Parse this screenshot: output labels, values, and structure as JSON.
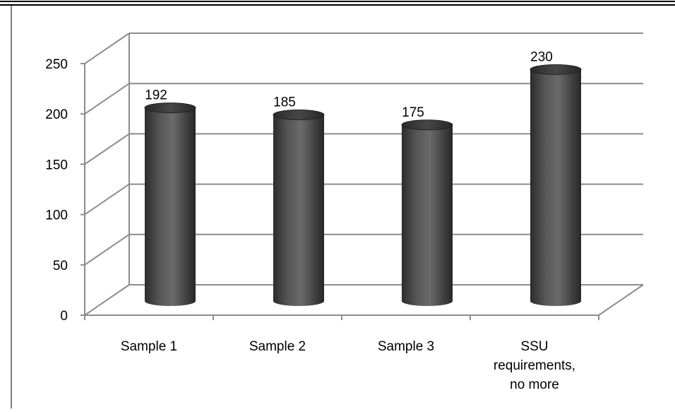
{
  "chart_data": {
    "type": "bar",
    "style": "3d-cylinder",
    "categories": [
      [
        "Sample 1"
      ],
      [
        "Sample 2"
      ],
      [
        "Sample 3"
      ],
      [
        "SSU",
        "requirements,",
        "no more"
      ]
    ],
    "values": [
      192,
      185,
      175,
      230
    ],
    "data_labels": [
      "192",
      "185",
      "175",
      "230"
    ],
    "y_ticks": [
      "0",
      "50",
      "100",
      "150",
      "200",
      "250"
    ],
    "ylim": [
      0,
      250
    ],
    "title": "",
    "xlabel": "",
    "ylabel": "",
    "grid": true,
    "legend": "none",
    "colors": {
      "bar": "#4a4a4a",
      "grid": "#8c8c8c",
      "frame": "#000000"
    }
  }
}
